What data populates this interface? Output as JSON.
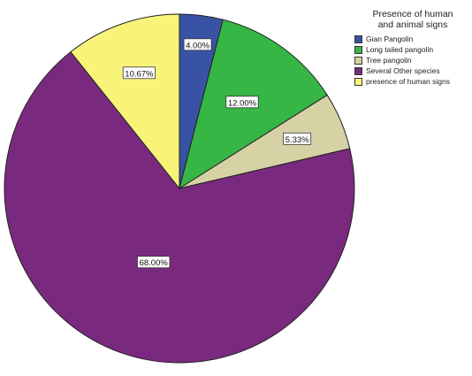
{
  "chart_data": {
    "type": "pie",
    "legend_title_lines": [
      "Presence of human",
      "and animal signs"
    ],
    "legend_position": "top-right",
    "slices": [
      {
        "label": "Gian Pangolin",
        "value": 4.0,
        "data_label": "4.00%",
        "color": "#3953a4"
      },
      {
        "label": "Long tailed pangolin",
        "value": 12.0,
        "data_label": "12.00%",
        "color": "#35b645"
      },
      {
        "label": "Tree pangolin",
        "value": 5.33,
        "data_label": "5.33%",
        "color": "#d7d1a6"
      },
      {
        "label": "Several Other species",
        "value": 68.0,
        "data_label": "68.00%",
        "color": "#7a2a7e"
      },
      {
        "label": "presence of human signs",
        "value": 10.67,
        "data_label": "10.67%",
        "color": "#f8f47a"
      }
    ]
  }
}
